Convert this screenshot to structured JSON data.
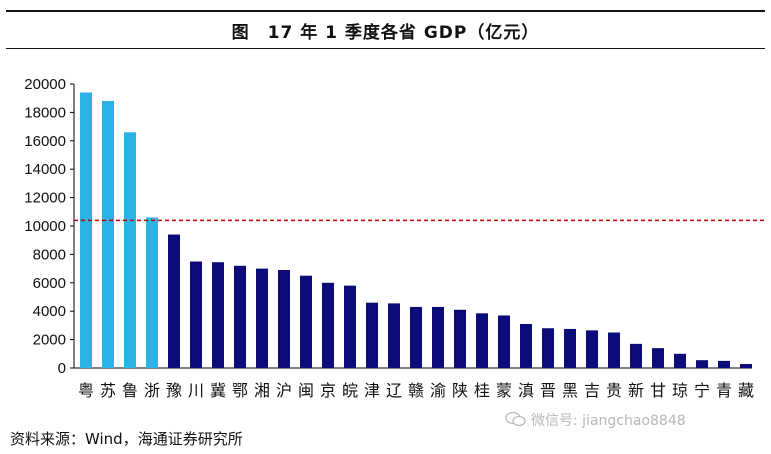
{
  "title": "图　17 年 1 季度各省 GDP（亿元）",
  "source": "资料来源：Wind，海通证券研究所",
  "watermark": "微信号: jiangchao8848",
  "colors": {
    "highlight": "#2BB3E6",
    "normal": "#0B0B7A",
    "reference_line": "#C00000"
  },
  "chart_data": {
    "type": "bar",
    "title": "17 年 1 季度各省 GDP（亿元）",
    "categories": [
      "粤",
      "苏",
      "鲁",
      "浙",
      "豫",
      "川",
      "冀",
      "鄂",
      "湘",
      "沪",
      "闽",
      "京",
      "皖",
      "津",
      "辽",
      "赣",
      "渝",
      "陕",
      "桂",
      "蒙",
      "滇",
      "晋",
      "黑",
      "吉",
      "贵",
      "新",
      "甘",
      "琼",
      "宁",
      "青",
      "藏"
    ],
    "values": [
      19400,
      18800,
      16600,
      10600,
      9400,
      7500,
      7450,
      7200,
      7000,
      6900,
      6500,
      6000,
      5800,
      4600,
      4550,
      4300,
      4300,
      4100,
      3850,
      3700,
      3100,
      2800,
      2750,
      2650,
      2500,
      1700,
      1400,
      1000,
      550,
      500,
      280
    ],
    "highlight_count": 4,
    "reference_line": 10400,
    "ylim": [
      0,
      20000
    ],
    "yticks": [
      0,
      2000,
      4000,
      6000,
      8000,
      10000,
      12000,
      14000,
      16000,
      18000,
      20000
    ],
    "xlabel": "",
    "ylabel": "",
    "grid": false
  }
}
